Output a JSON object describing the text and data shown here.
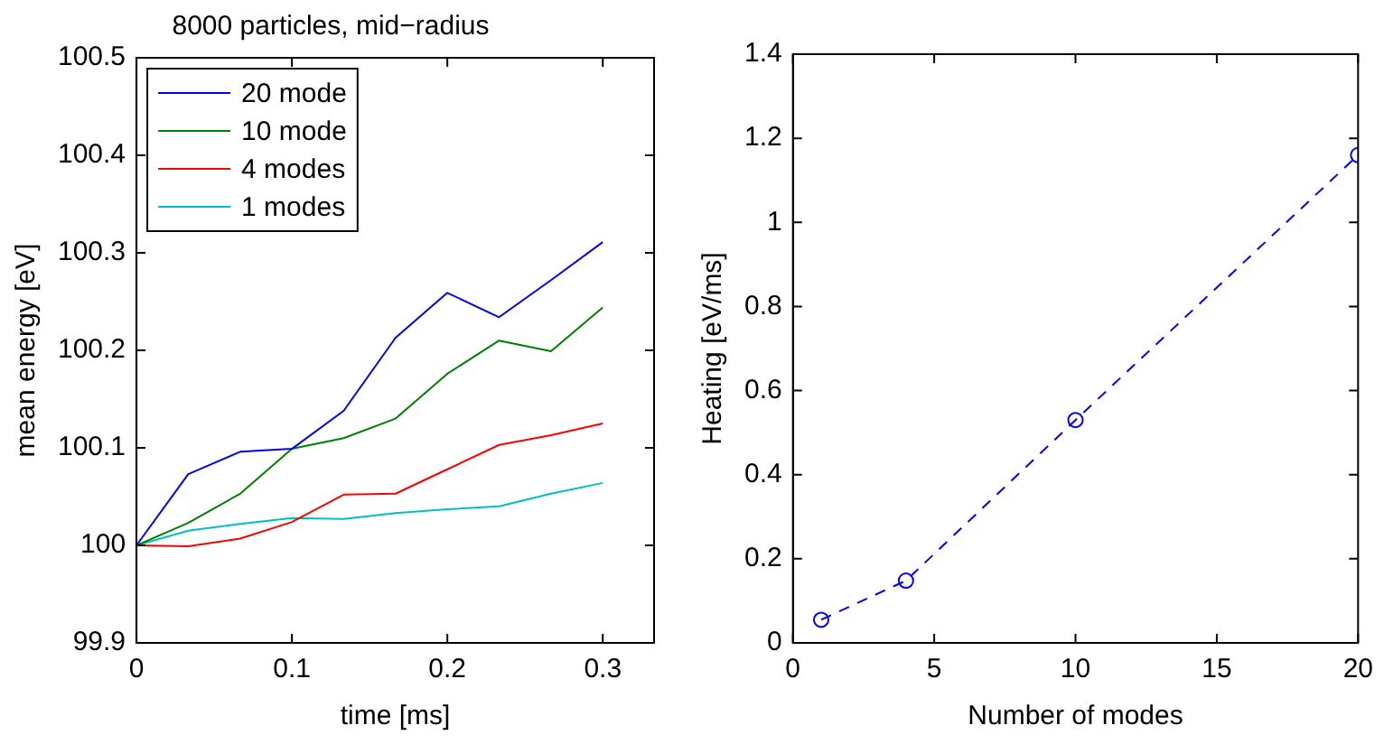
{
  "chart_data": [
    {
      "type": "line",
      "title": "8000 particles, mid−radius",
      "xlabel": "time [ms]",
      "ylabel": "mean energy [eV]",
      "x": [
        0,
        0.0333,
        0.0667,
        0.1,
        0.1333,
        0.1667,
        0.2,
        0.2333,
        0.2667,
        0.3
      ],
      "series": [
        {
          "name": "20 mode",
          "color": "#0000ff",
          "values": [
            100,
            100.073,
            100.096,
            100.099,
            100.138,
            100.213,
            100.259,
            100.234,
            100.272,
            100.311
          ]
        },
        {
          "name": "10 mode",
          "color": "#008000",
          "values": [
            100,
            100.023,
            100.053,
            100.099,
            100.11,
            100.13,
            100.176,
            100.21,
            100.199,
            100.244
          ]
        },
        {
          "name": "4 modes",
          "color": "#ff0000",
          "values": [
            100,
            99.999,
            100.007,
            100.024,
            100.052,
            100.053,
            100.078,
            100.103,
            100.113,
            100.125
          ]
        },
        {
          "name": "1 modes",
          "color": "#00bfbf",
          "values": [
            100,
            100.015,
            100.022,
            100.028,
            100.027,
            100.033,
            100.037,
            100.04,
            100.053,
            100.064
          ]
        }
      ],
      "xlim": [
        0,
        0.333
      ],
      "xticks": [
        0,
        0.1,
        0.2,
        0.3
      ],
      "ylim": [
        99.9,
        100.5
      ],
      "yticks": [
        99.9,
        100,
        100.1,
        100.2,
        100.3,
        100.4,
        100.5
      ],
      "legend": "top left",
      "marker": "none",
      "line_style": "solid"
    },
    {
      "type": "line",
      "xlabel": "Number of modes",
      "ylabel": "Heating [eV/ms]",
      "x": [
        1,
        4,
        10,
        20
      ],
      "series": [
        {
          "color": "#0000ff",
          "values": [
            0.055,
            0.148,
            0.53,
            1.16
          ]
        }
      ],
      "xlim": [
        0,
        20
      ],
      "xticks": [
        0,
        5,
        10,
        15,
        20
      ],
      "ylim": [
        0,
        1.4
      ],
      "yticks": [
        0,
        0.2,
        0.4,
        0.6,
        0.8,
        1,
        1.2,
        1.4
      ],
      "marker": "circle",
      "line_style": "dashed"
    }
  ]
}
